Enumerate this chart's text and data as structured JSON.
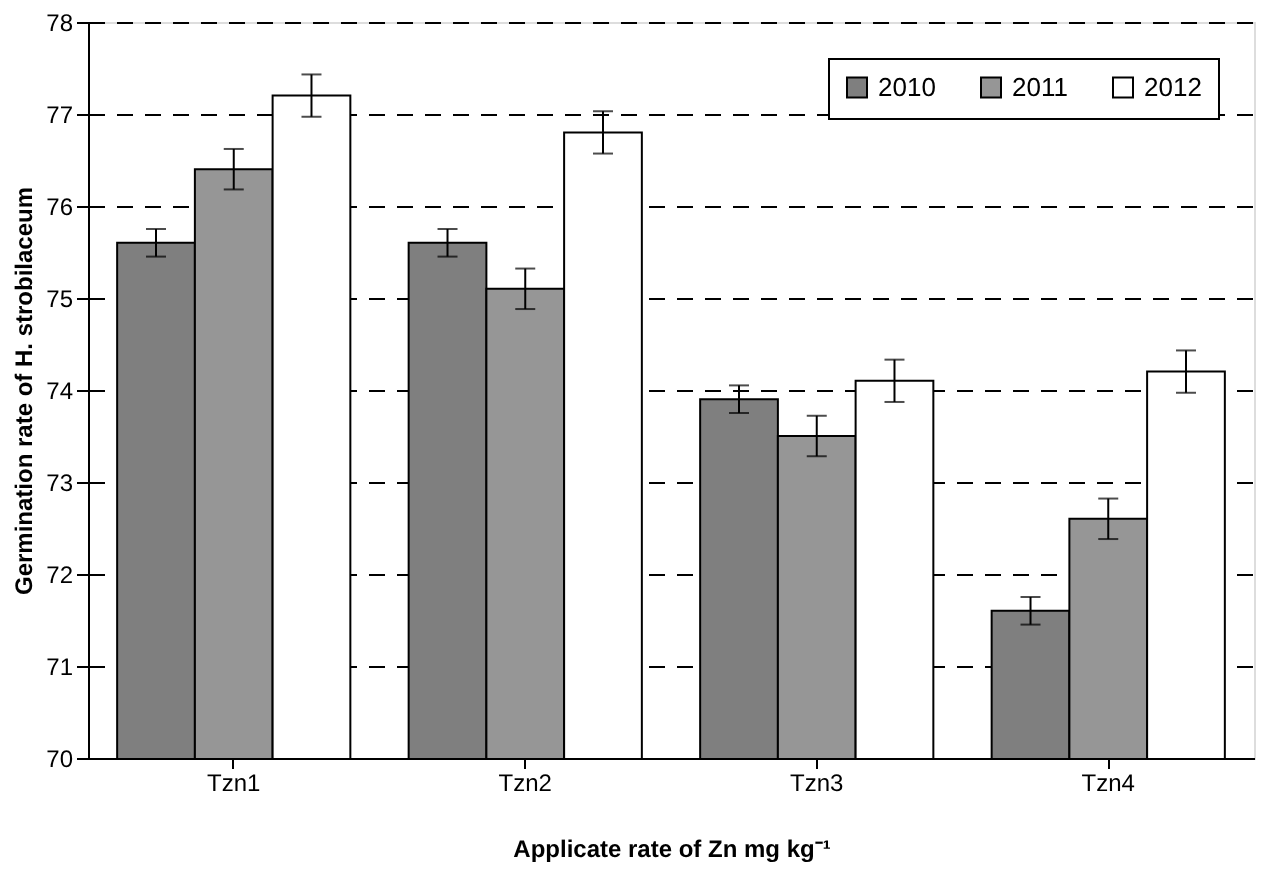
{
  "chart_data": {
    "type": "bar",
    "xlabel": "Applicate rate of Zn mg kg⁻¹",
    "ylabel": "Germination rate of H. strobilaceum",
    "categories": [
      "Tzn1",
      "Tzn2",
      "Tzn3",
      "Tzn4"
    ],
    "series": [
      {
        "name": "2010",
        "color": "#7f7f7f",
        "values": [
          75.6,
          75.6,
          73.9,
          71.6
        ],
        "errors": [
          0.15,
          0.15,
          0.15,
          0.15
        ]
      },
      {
        "name": "2011",
        "color": "#969696",
        "values": [
          76.4,
          75.1,
          73.5,
          72.6
        ],
        "errors": [
          0.22,
          0.22,
          0.22,
          0.22
        ]
      },
      {
        "name": "2012",
        "color": "#ffffff",
        "values": [
          77.2,
          76.8,
          74.1,
          74.2
        ],
        "errors": [
          0.23,
          0.23,
          0.23,
          0.23
        ]
      }
    ],
    "ylim": [
      70,
      78
    ],
    "yticks": [
      70,
      71,
      72,
      73,
      74,
      75,
      76,
      77,
      78
    ],
    "grid": "y",
    "legend": "top right"
  }
}
